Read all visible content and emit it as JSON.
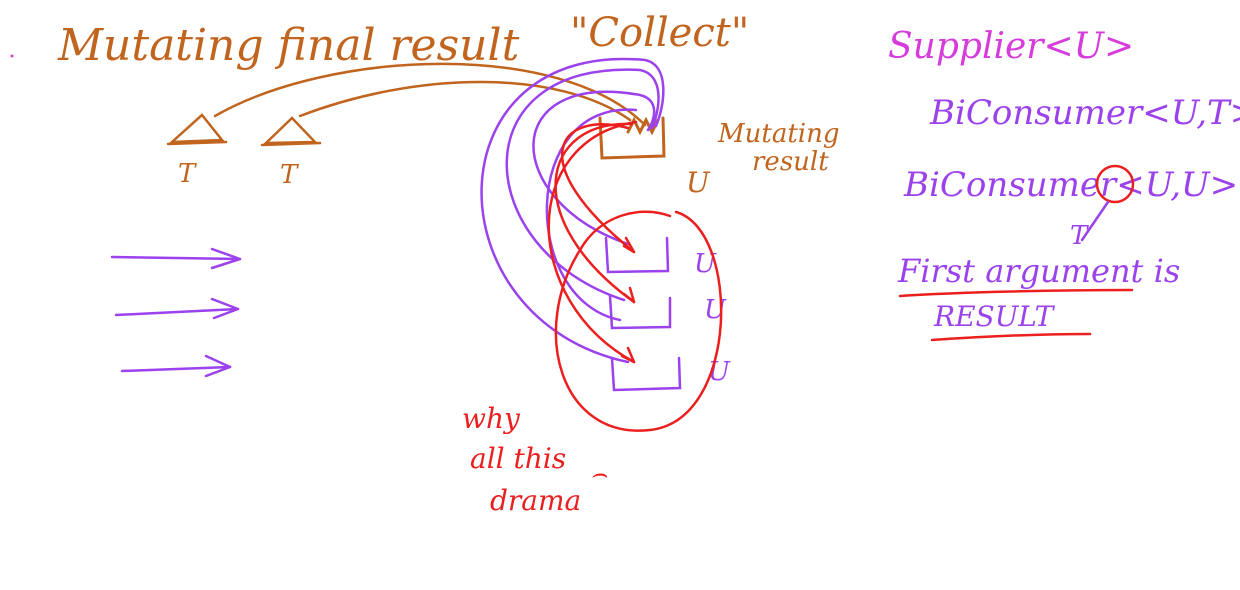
{
  "title": "Mutating final result",
  "title_quote": "\"Collect\"",
  "left_diagram": {
    "input_labels": [
      "T",
      "T"
    ],
    "container_label": "U",
    "container_note": [
      "Mutating",
      "result"
    ],
    "partial_labels": [
      "U",
      "U",
      "U"
    ],
    "bottom_note": [
      "why",
      "all this",
      "drama",
      "⌢"
    ]
  },
  "right_notes": {
    "supplier": "Supplier<U>",
    "biconsumer_1": "BiConsumer<U,T>",
    "biconsumer_2": "BiConsumer<U,U>",
    "annotation_arrow_label": "T",
    "first_argument": "First argument is",
    "result": "RESULT"
  },
  "colors": {
    "brown": "#c0641e",
    "violet": "#9b42ec",
    "magenta": "#d63cdb",
    "red": "#ec1f1f"
  }
}
